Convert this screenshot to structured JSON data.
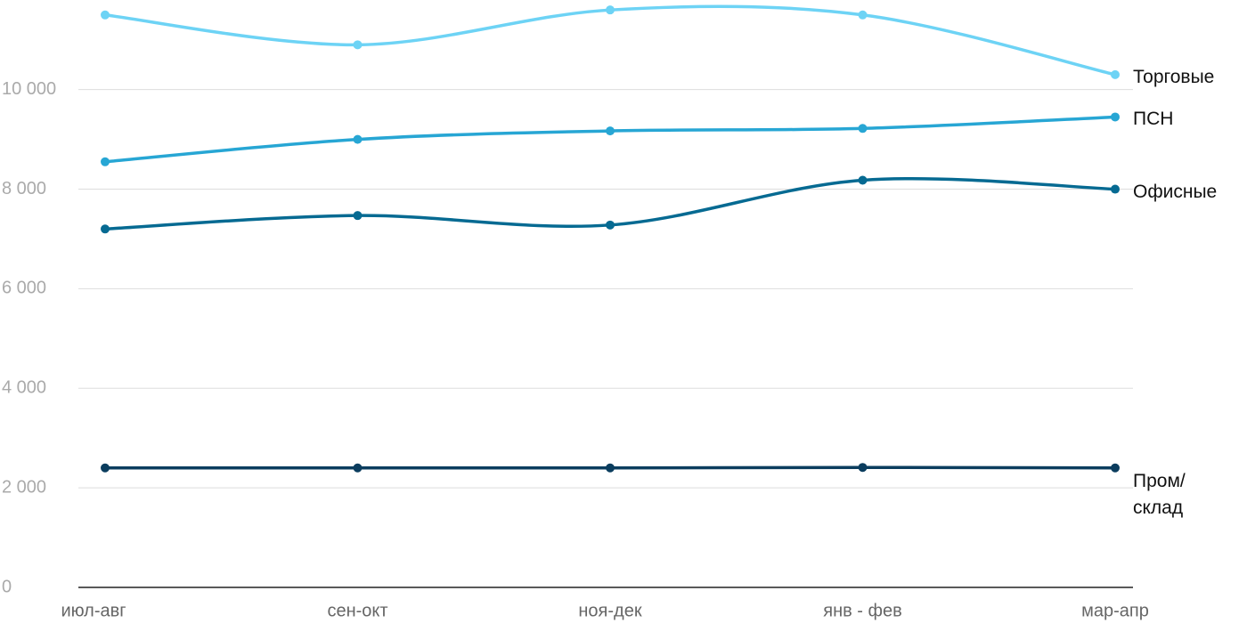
{
  "chart_data": {
    "type": "line",
    "categories": [
      "июл-авг",
      "сен-окт",
      "ноя-дек",
      "янв - фев",
      "мар-апр"
    ],
    "series": [
      {
        "name": "Торговые",
        "color": "#6dd3f5",
        "values": [
          11500,
          10900,
          11600,
          11500,
          10300
        ]
      },
      {
        "name": "ПСН",
        "color": "#27a6d4",
        "values": [
          8550,
          9000,
          9170,
          9220,
          9450
        ]
      },
      {
        "name": "Офисные",
        "color": "#066a92",
        "values": [
          7200,
          7470,
          7280,
          8180,
          8000
        ]
      },
      {
        "name": "Пром/\nсклад",
        "color": "#0b3d5e",
        "values": [
          2400,
          2400,
          2400,
          2410,
          2400
        ]
      }
    ],
    "ylim": [
      0,
      11800
    ],
    "yticks": [
      0,
      {
        "value": 2000,
        "label": "2 000"
      },
      {
        "value": 4000,
        "label": "4 000"
      },
      {
        "value": 6000,
        "label": "6 000"
      },
      {
        "value": 8000,
        "label": "8 000"
      },
      {
        "value": 10000,
        "label": "10 000"
      }
    ],
    "grid": true
  }
}
